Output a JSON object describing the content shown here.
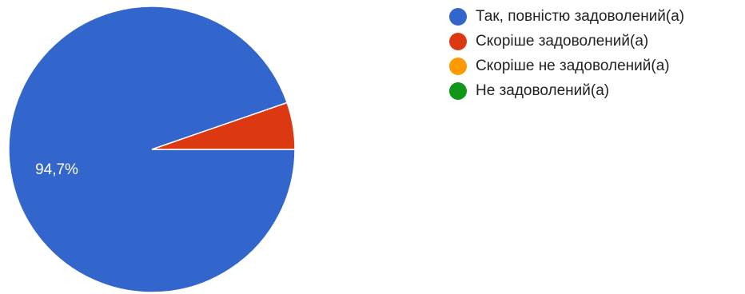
{
  "chart_data": {
    "type": "pie",
    "categories": [
      "Так, повністю задоволений(а)",
      "Скоріше задоволений(а)",
      "Скоріше не задоволений(а)",
      "Не задоволений(а)"
    ],
    "values": [
      94.7,
      5.3,
      0,
      0
    ],
    "colors": [
      "#3366cc",
      "#dc3912",
      "#ff9900",
      "#109618"
    ],
    "data_labels": [
      "94,7%"
    ],
    "legend_position": "right"
  }
}
